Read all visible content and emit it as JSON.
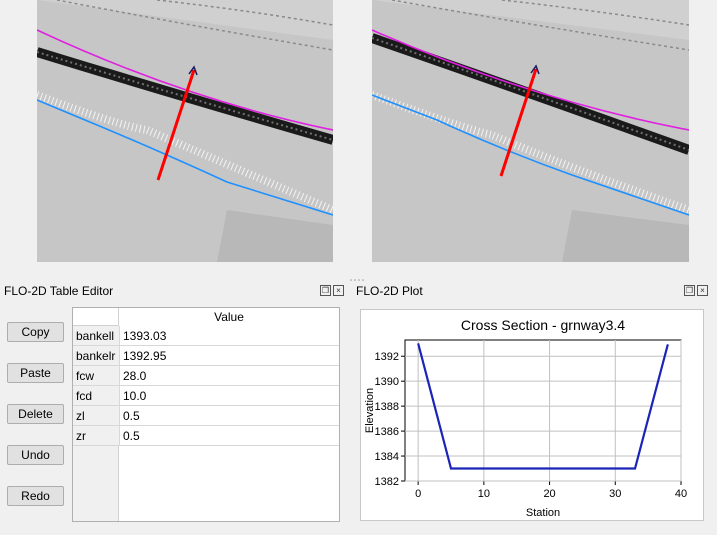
{
  "table_editor": {
    "title": "FLO-2D Table Editor",
    "buttons": {
      "copy": "Copy",
      "paste": "Paste",
      "delete": "Delete",
      "undo": "Undo",
      "redo": "Redo"
    },
    "column_header": "Value",
    "rows": [
      {
        "name": "bankell",
        "value": "1393.03"
      },
      {
        "name": "bankelr",
        "value": "1392.95"
      },
      {
        "name": "fcw",
        "value": "28.0"
      },
      {
        "name": "fcd",
        "value": "10.0"
      },
      {
        "name": "zl",
        "value": "0.5"
      },
      {
        "name": "zr",
        "value": "0.5"
      }
    ]
  },
  "plot_panel": {
    "title": "FLO-2D Plot"
  },
  "colors": {
    "map_background": "#c6c6c6",
    "channel_dark": "#1a1a1a",
    "bank_left": "#e020e0",
    "bank_right": "#1e90ff",
    "cross_section": "#ff0000",
    "plot_line": "#1a24b8"
  },
  "chart_data": {
    "type": "line",
    "title": "Cross Section - grnway3.4",
    "xlabel": "Station",
    "ylabel": "Elevation",
    "x_ticks": [
      "0",
      "10",
      "20",
      "30",
      "40"
    ],
    "y_ticks": [
      "1382",
      "1384",
      "1386",
      "1388",
      "1390",
      "1392"
    ],
    "xlim": [
      -2,
      40
    ],
    "ylim": [
      1382,
      1393.3
    ],
    "grid": true,
    "series": [
      {
        "x": [
          0,
          5,
          33,
          38
        ],
        "y": [
          1393.03,
          1383,
          1383,
          1392.95
        ]
      }
    ]
  }
}
